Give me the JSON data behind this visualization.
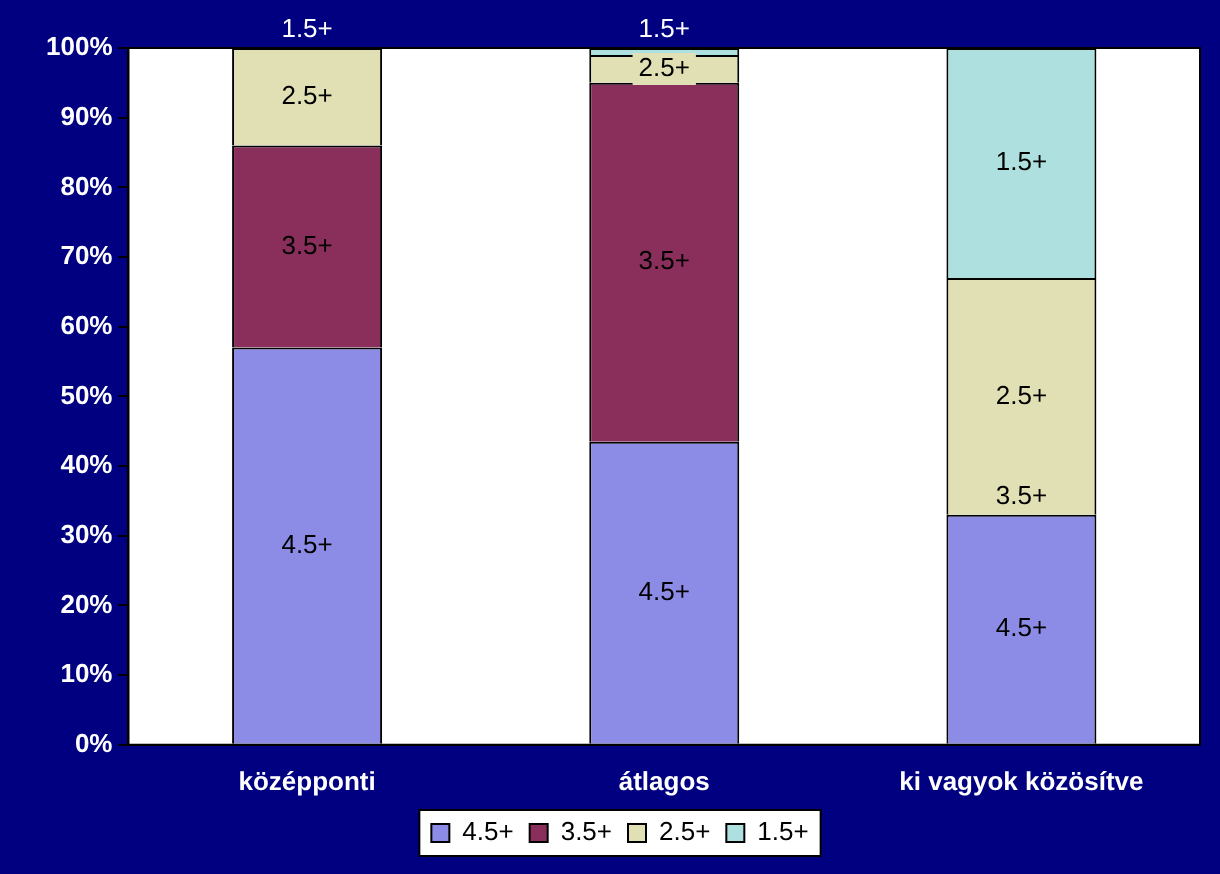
{
  "chart_data": {
    "type": "bar",
    "stacked": true,
    "categories": [
      "középponti",
      "átlagos",
      "ki vagyok közösítve"
    ],
    "series": [
      {
        "name": "4.5+",
        "color": "#8c8ce6",
        "values": [
          57,
          43.5,
          33
        ]
      },
      {
        "name": "3.5+",
        "color": "#8a2f5c",
        "values": [
          29,
          51.5,
          0
        ]
      },
      {
        "name": "2.5+",
        "color": "#e0e0b4",
        "values": [
          14,
          4,
          34
        ]
      },
      {
        "name": "1.5+",
        "color": "#aee0e0",
        "values": [
          0,
          1,
          33
        ]
      }
    ],
    "ylim": [
      0,
      100
    ],
    "yticks": [
      {
        "value": 0,
        "label": "0%"
      },
      {
        "value": 10,
        "label": "10%"
      },
      {
        "value": 20,
        "label": "20%"
      },
      {
        "value": 30,
        "label": "30%"
      },
      {
        "value": 40,
        "label": "40%"
      },
      {
        "value": 50,
        "label": "50%"
      },
      {
        "value": 60,
        "label": "60%"
      },
      {
        "value": 70,
        "label": "70%"
      },
      {
        "value": 80,
        "label": "80%"
      },
      {
        "value": 90,
        "label": "90%"
      },
      {
        "value": 100,
        "label": "100%"
      }
    ],
    "grid": false,
    "legend": "bottom"
  }
}
